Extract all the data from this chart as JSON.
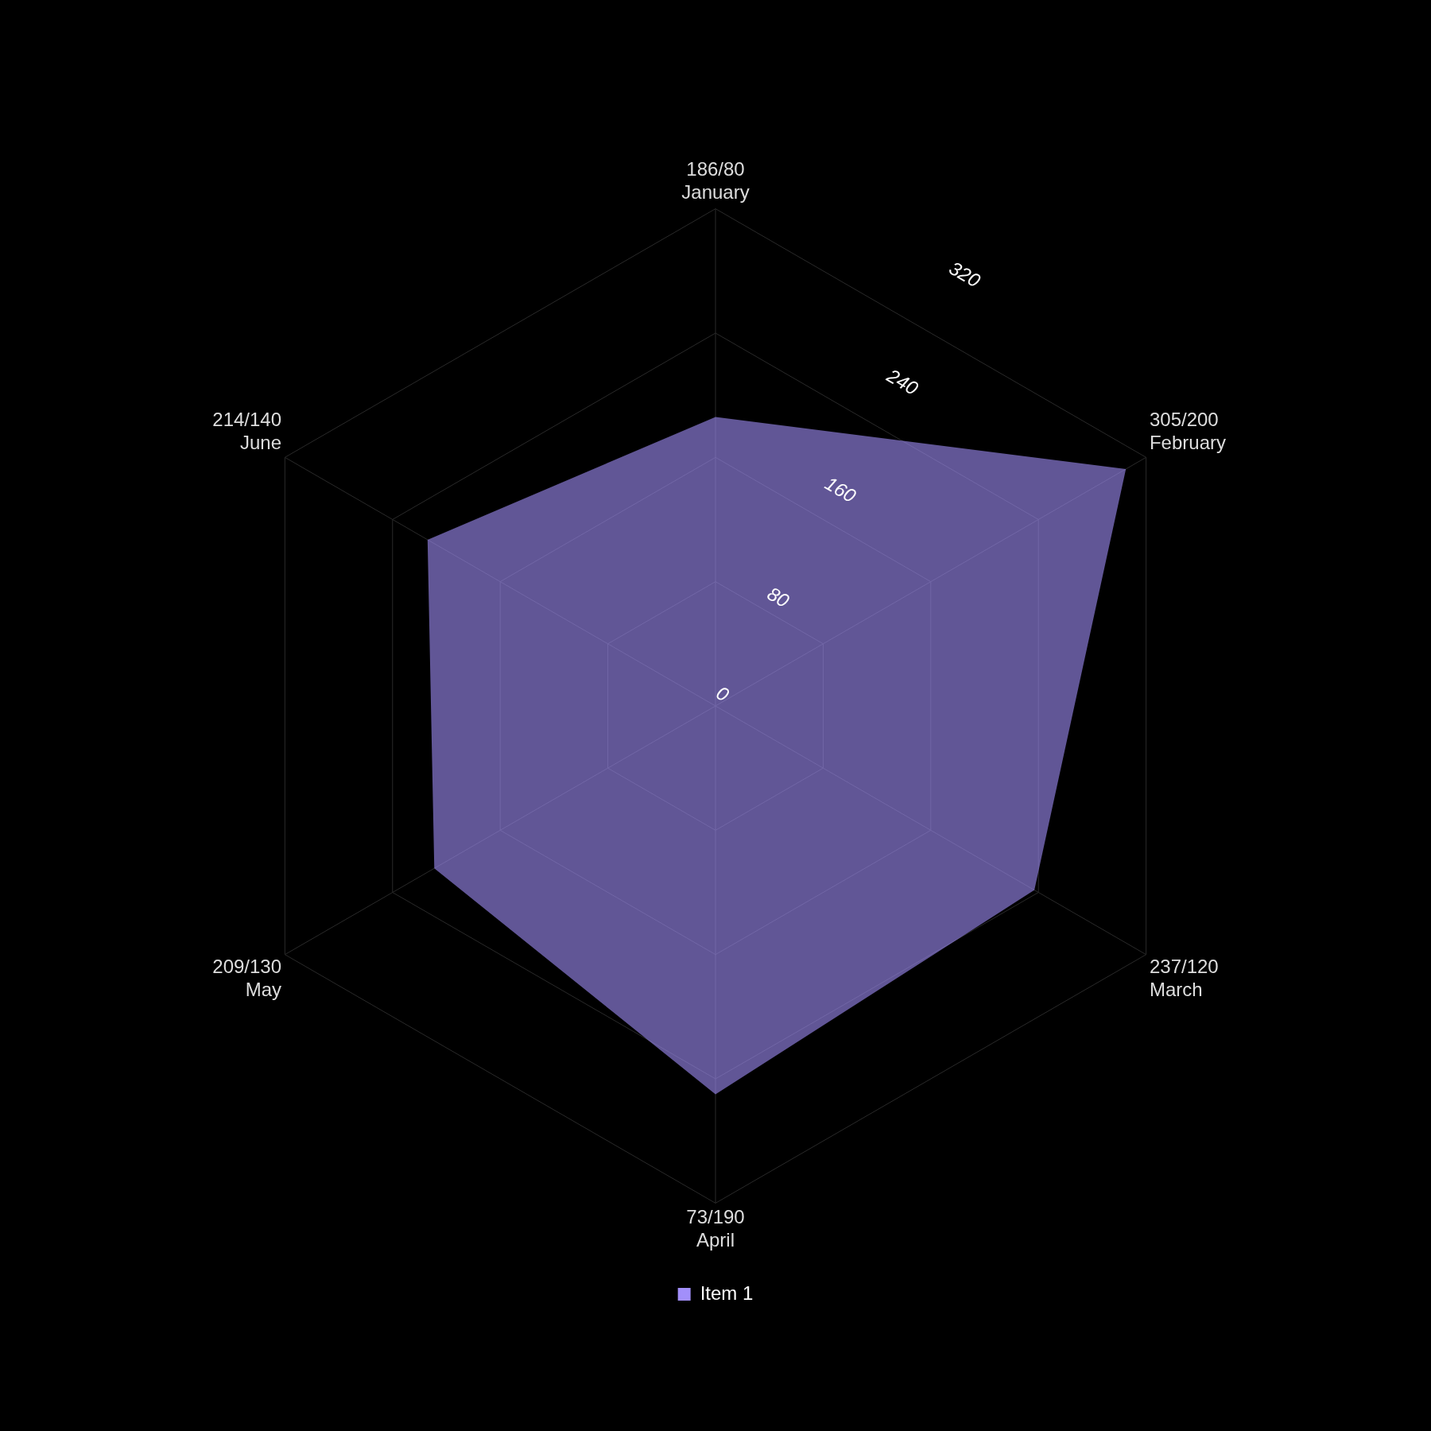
{
  "chart_data": {
    "type": "radar",
    "categories": [
      "January",
      "February",
      "March",
      "April",
      "May",
      "June"
    ],
    "series": [
      {
        "name": "Item 1",
        "color": "#a28ffa",
        "values": [
          186,
          305,
          237,
          250,
          209,
          214
        ]
      }
    ],
    "annotations": [
      "186/80",
      "305/200",
      "237/120",
      "73/190",
      "209/130",
      "214/140"
    ],
    "ylim": [
      0,
      320
    ],
    "yticks": [
      0,
      80,
      160,
      240,
      320
    ],
    "grid": true,
    "legend": "bottom"
  }
}
